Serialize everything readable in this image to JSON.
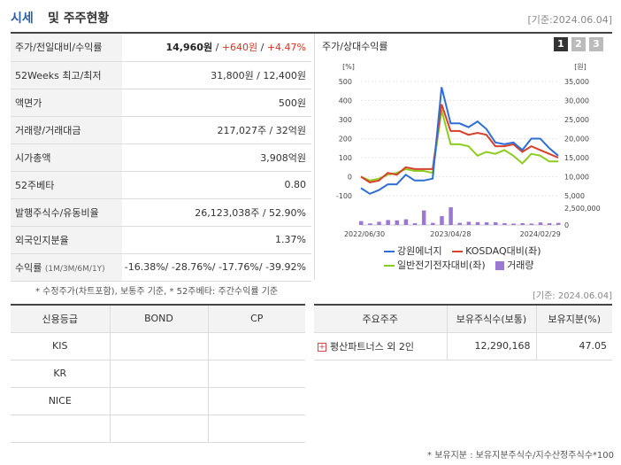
{
  "header": {
    "title_a": "시세",
    "title_b": "및 주주현황",
    "date": "[기준:2024.06.04]"
  },
  "sise": [
    {
      "label": "주가/전일대비/수익률",
      "price": "14,960원",
      "change": "+640원",
      "rate": "+4.47%"
    },
    {
      "label": "52Weeks 최고/최저",
      "value": "31,800원 / 12,400원"
    },
    {
      "label": "액면가",
      "value": "500원"
    },
    {
      "label": "거래량/거래대금",
      "value": "217,027주 / 32억원"
    },
    {
      "label": "시가총액",
      "value": "3,908억원"
    },
    {
      "label": "52주베타",
      "value": "0.80"
    },
    {
      "label": "발행주식수/유동비율",
      "value": "26,123,038주 / 52.90%"
    },
    {
      "label": "외국인지분율",
      "value": "1.37%"
    },
    {
      "label": "수익률",
      "label_sub": "(1M/3M/6M/1Y)",
      "value": "-16.38%/ -28.76%/ -17.76%/ -39.92%"
    }
  ],
  "note1": "* 수정주가(차트포함), 보통주 기준, * 52주베타: 주간수익률 기준",
  "date2": "[기준: 2024.06.04]",
  "chart": {
    "title": "주가/상대수익률",
    "tabs": [
      "1",
      "2",
      "3"
    ],
    "left_unit": "[%]",
    "right_unit": "[원]",
    "legend": [
      "강원에너지",
      "KOSDAQ대비(좌)",
      "일반전기전자대비(좌)",
      "거래량"
    ],
    "colors": {
      "price": "#2e6fd6",
      "kosdaq": "#d8402a",
      "sector": "#8ccc1e",
      "volume": "#9b78d4"
    }
  },
  "chart_data": {
    "type": "line",
    "x": [
      "2022/06/30",
      "",
      "",
      "",
      "",
      "",
      "",
      "",
      "",
      "",
      "2023/04/28",
      "",
      "",
      "",
      "",
      "",
      "",
      "",
      "",
      "",
      "2024/02/29",
      "",
      ""
    ],
    "x_tick_labels": [
      "2022/06/30",
      "2023/04/28",
      "2024/02/29"
    ],
    "y_left_ticks": [
      "500",
      "400",
      "300",
      "200",
      "100",
      "0",
      "-100"
    ],
    "y_right_ticks": [
      "35,000",
      "30,000",
      "25,000",
      "20,000",
      "15,000",
      "10,000",
      "5,000"
    ],
    "y_vol_ticks": [
      "2,500,000",
      "0"
    ],
    "ylim_left": [
      -100,
      500
    ],
    "ylim_right": [
      5000,
      35000
    ],
    "series": [
      {
        "name": "강원에너지",
        "values": [
          -60,
          -90,
          -70,
          -40,
          -40,
          10,
          -20,
          -20,
          -10,
          470,
          280,
          280,
          260,
          290,
          250,
          180,
          170,
          180,
          140,
          200,
          200,
          150,
          110
        ]
      },
      {
        "name": "KOSDAQ대비(좌)",
        "values": [
          0,
          -30,
          -20,
          20,
          10,
          50,
          40,
          40,
          40,
          380,
          240,
          240,
          220,
          230,
          220,
          160,
          160,
          170,
          130,
          160,
          140,
          120,
          100
        ]
      },
      {
        "name": "일반전기전자대비(좌)",
        "values": [
          0,
          -20,
          -10,
          10,
          20,
          40,
          30,
          30,
          20,
          350,
          170,
          170,
          160,
          110,
          130,
          120,
          140,
          110,
          70,
          120,
          110,
          80,
          80
        ]
      }
    ],
    "volume": [
      0.22,
      0.09,
      0.18,
      0.28,
      0.26,
      0.32,
      0.1,
      0.82,
      0.12,
      0.5,
      1.0,
      0.12,
      0.18,
      0.16,
      0.15,
      0.15,
      0.1,
      0.08,
      0.1,
      0.08,
      0.14,
      0.1,
      0.12
    ]
  },
  "credit": {
    "headers": [
      "신용등급",
      "BOND",
      "CP"
    ],
    "rows": [
      [
        "KIS",
        "",
        ""
      ],
      [
        "KR",
        "",
        ""
      ],
      [
        "NICE",
        "",
        ""
      ],
      [
        "",
        "",
        ""
      ]
    ]
  },
  "holders": {
    "headers": [
      "주요주주",
      "보유주식수(보통)",
      "보유지분(%)"
    ],
    "rows": [
      {
        "name": "평산파트너스 외 2인",
        "shares": "12,290,168",
        "pct": "47.05"
      }
    ],
    "note": "* 보유지분 : 보유지분주식수/지수산정주식수*100"
  }
}
